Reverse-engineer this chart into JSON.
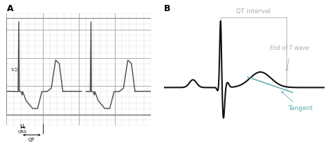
{
  "panel_a_label": "A",
  "panel_b_label": "B",
  "vp_label": "V2",
  "qrs_label": "QRS",
  "qt_label": "QT",
  "qt_interval_label": "QT interval",
  "end_t_wave_label": "End of T wave",
  "tangent_label": "Tangent",
  "grid_color_minor": "#cccccc",
  "grid_color_major": "#aaaaaa",
  "ecg_a_color": "#555555",
  "ecg_b_color": "#111111",
  "label_color_gray": "#aaaaaa",
  "tangent_color": "#5aadad",
  "bg_color": "#ffffff",
  "panel_a_bg": "#e8e8e8"
}
